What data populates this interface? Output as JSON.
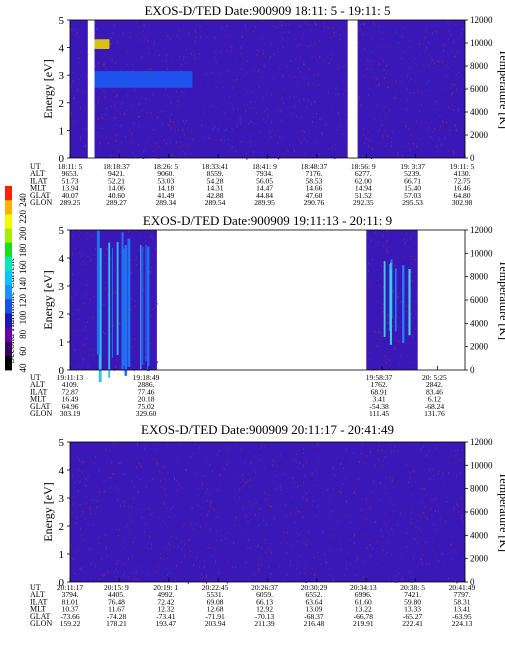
{
  "colorbar": {
    "label": "Second Harmonic Current",
    "ticks": [
      "40",
      "60",
      "80",
      "100",
      "120",
      "140",
      "160",
      "180",
      "200",
      "220",
      "240"
    ],
    "colors": [
      "#000000",
      "#3a0060",
      "#6a00a8",
      "#1a1ab8",
      "#1a50e6",
      "#1b90ff",
      "#00c8ff",
      "#00e8c0",
      "#18e018",
      "#a0f000",
      "#f8f800",
      "#ffb000",
      "#ff2000"
    ]
  },
  "chart_data": [
    {
      "type": "heatmap",
      "title": "EXOS-D/TED    Date:900909  18:11: 5 - 19:11: 5",
      "ylabel": "Energy [eV]",
      "ylabel_right": "Temperature [K]",
      "ylim": [
        0,
        5
      ],
      "yticks": [
        "0",
        "1",
        "2",
        "3",
        "4",
        "5"
      ],
      "ylim_right": [
        0,
        12000
      ],
      "yticks_right": [
        "0",
        "2000",
        "4000",
        "6000",
        "8000",
        "10000",
        "12000"
      ],
      "row_labels": [
        "UT",
        "ALT",
        "ILAT",
        "MLT",
        "GLAT",
        "GLON"
      ],
      "columns": [
        [
          "18:11: 5",
          "9653.",
          "51.73",
          "13.94",
          "40.07",
          "289.25"
        ],
        [
          "18:18:37",
          "9421.",
          "52.21",
          "14.06",
          "40.60",
          "289.27"
        ],
        [
          "18:26: 5",
          "9060.",
          "53.03",
          "14.18",
          "41.49",
          "289.34"
        ],
        [
          "18:33:41",
          "8559.",
          "54.28",
          "14.31",
          "42.88",
          "289.54"
        ],
        [
          "18:41: 9",
          "7934.",
          "56.05",
          "14.47",
          "44.84",
          "289.95"
        ],
        [
          "18:48:37",
          "7176.",
          "58.53",
          "14.66",
          "47.60",
          "290.76"
        ],
        [
          "18:56: 9",
          "6277.",
          "62.00",
          "14.94",
          "51.52",
          "292.35"
        ],
        [
          "19: 3:37",
          "5239.",
          "66.71",
          "15.40",
          "57.03",
          "295.53"
        ],
        [
          "19:11: 5",
          "4130.",
          "72.75",
          "16.46",
          "64.80",
          "302.98"
        ]
      ],
      "data_gaps": [
        [
          0.045,
          0.062
        ],
        [
          0.703,
          0.728
        ]
      ],
      "features": [
        {
          "x0": 0.062,
          "x1": 0.31,
          "y0": 2.55,
          "y1": 3.15,
          "level": 0.45
        },
        {
          "x0": 0.062,
          "x1": 0.1,
          "y0": 3.95,
          "y1": 4.3,
          "level": 0.95
        }
      ]
    },
    {
      "type": "heatmap",
      "title": "EXOS-D/TED    Date:900909  19:11:13 - 20:11: 9",
      "ylabel": "Energy [eV]",
      "ylabel_right": "Temperature [K]",
      "ylim": [
        0,
        5
      ],
      "yticks": [
        "0",
        "1",
        "2",
        "3",
        "4",
        "5"
      ],
      "ylim_right": [
        0,
        12000
      ],
      "yticks_right": [
        "0",
        "2000",
        "4000",
        "6000",
        "8000",
        "10000",
        "12000"
      ],
      "row_labels": [
        "UT",
        "ALT",
        "ILAT",
        "MLT",
        "GLAT",
        "GLON"
      ],
      "columns": [
        [
          "19:11:13",
          "4109.",
          "72.87",
          "16.49",
          "64.96",
          "303.19"
        ],
        [
          "19:18:49",
          "2886.",
          "77.46",
          "20.18",
          "75.02",
          "329.60"
        ],
        [
          "19:58:37",
          "1762.",
          "68.91",
          "3.41",
          "-54.38",
          "111.45"
        ],
        [
          "20: 5:25",
          "2842.",
          "83.46",
          "6.12",
          "-68.24",
          "131.76"
        ]
      ],
      "data_ranges": [
        [
          0.0,
          0.22
        ],
        [
          0.75,
          0.88
        ]
      ],
      "features": [
        {
          "x0": 0.06,
          "x1": 0.2,
          "y0": 0.0,
          "y1": 5.0,
          "level": 0.5
        },
        {
          "x0": 0.78,
          "x1": 0.86,
          "y0": 1.2,
          "y1": 4.0,
          "level": 0.55
        }
      ]
    },
    {
      "type": "heatmap",
      "title": "EXOS-D/TED    Date:900909  20:11:17 - 20:41:49",
      "ylabel": "Energy [eV]",
      "ylabel_right": "Temperature [K]",
      "ylim": [
        0,
        5
      ],
      "yticks": [
        "0",
        "1",
        "2",
        "3",
        "4",
        "5"
      ],
      "ylim_right": [
        0,
        12000
      ],
      "yticks_right": [
        "0",
        "2000",
        "4000",
        "6000",
        "8000",
        "10000",
        "12000"
      ],
      "row_labels": [
        "UT",
        "ALT",
        "ILAT",
        "MLT",
        "GLAT",
        "GLON"
      ],
      "columns": [
        [
          "20:11:17",
          "3794.",
          "81.01",
          "10.37",
          "-73.66",
          "159.22"
        ],
        [
          "20:15: 9",
          "4405.",
          "76.48",
          "11.67",
          "-74.28",
          "178.21"
        ],
        [
          "20:19: 1",
          "4992.",
          "72.42",
          "12.32",
          "-73.41",
          "193.47"
        ],
        [
          "20:22:45",
          "5531.",
          "69.08",
          "12.68",
          "-71.91",
          "203.94"
        ],
        [
          "20:26:37",
          "6059.",
          "66.13",
          "12.92",
          "-70.13",
          "211.39"
        ],
        [
          "20:30:29",
          "6552.",
          "63.64",
          "13.09",
          "-68.37",
          "216.48"
        ],
        [
          "20:34:13",
          "6996.",
          "61.60",
          "13.22",
          "-66.78",
          "219.91"
        ],
        [
          "20:38: 5",
          "7421.",
          "59.80",
          "13.33",
          "-65.27",
          "222.41"
        ],
        [
          "20:41:49",
          "7797.",
          "58.31",
          "13.41",
          "-63.95",
          "224.13"
        ]
      ],
      "features": []
    }
  ]
}
